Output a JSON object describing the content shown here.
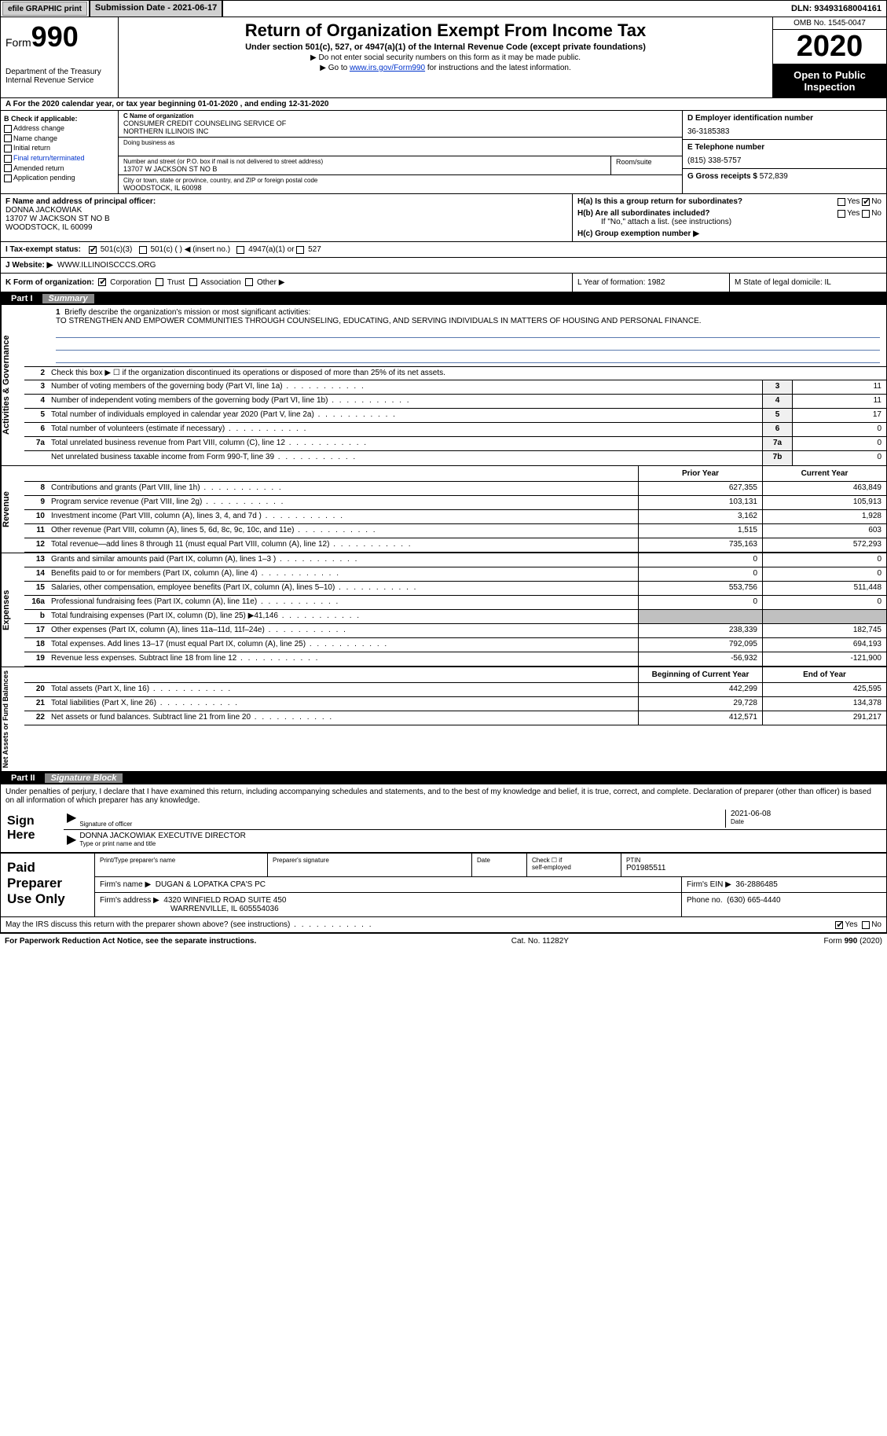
{
  "topbar": {
    "efile_label": "efile GRAPHIC print",
    "submission_label": "Submission Date - 2021-06-17",
    "dln": "DLN: 93493168004161"
  },
  "header": {
    "form_prefix": "Form",
    "form_num": "990",
    "dept": "Department of the Treasury",
    "irs": "Internal Revenue Service",
    "title": "Return of Organization Exempt From Income Tax",
    "subtitle": "Under section 501(c), 527, or 4947(a)(1) of the Internal Revenue Code (except private foundations)",
    "note1": "▶ Do not enter social security numbers on this form as it may be made public.",
    "note2_pre": "▶ Go to ",
    "note2_link": "www.irs.gov/Form990",
    "note2_post": " for instructions and the latest information.",
    "omb": "OMB No. 1545-0047",
    "year": "2020",
    "open": "Open to Public Inspection"
  },
  "line_a": "A For the 2020 calendar year, or tax year beginning 01-01-2020    , and ending 12-31-2020",
  "section_b": {
    "hdr": "B Check if applicable:",
    "addr": "Address change",
    "name": "Name change",
    "init": "Initial return",
    "final": "Final return/terminated",
    "amend": "Amended return",
    "app": "Application pending"
  },
  "section_c": {
    "name_hdr": "C Name of organization",
    "name1": "CONSUMER CREDIT COUNSELING SERVICE OF",
    "name2": "NORTHERN ILLINOIS INC",
    "dba": "Doing business as",
    "street_hdr": "Number and street (or P.O. box if mail is not delivered to street address)",
    "street": "13707 W JACKSON ST NO B",
    "room_hdr": "Room/suite",
    "city_hdr": "City or town, state or province, country, and ZIP or foreign postal code",
    "city": "WOODSTOCK, IL  60098"
  },
  "section_d": {
    "ein_hdr": "D Employer identification number",
    "ein": "36-3185383",
    "tel_hdr": "E Telephone number",
    "tel": "(815) 338-5757",
    "gross_hdr": "G Gross receipts $",
    "gross": "572,839"
  },
  "section_f": {
    "hdr": "F  Name and address of principal officer:",
    "name": "DONNA JACKOWIAK",
    "addr1": "13707 W JACKSON ST NO B",
    "addr2": "WOODSTOCK, IL  60099"
  },
  "section_h": {
    "ha": "H(a)  Is this a group return for subordinates?",
    "hb": "H(b)  Are all subordinates included?",
    "hb_note": "If \"No,\" attach a list. (see instructions)",
    "hc": "H(c)  Group exemption number ▶",
    "yes": "Yes",
    "no": "No"
  },
  "row_i": {
    "label": "I  Tax-exempt status:",
    "c1": "501(c)(3)",
    "c2": "501(c) (  ) ◀ (insert no.)",
    "c3": "4947(a)(1) or",
    "c4": "527"
  },
  "row_j": {
    "label": "J  Website: ▶",
    "val": "WWW.ILLINOISCCCS.ORG"
  },
  "row_k": {
    "label": "K Form of organization:",
    "corp": "Corporation",
    "trust": "Trust",
    "assoc": "Association",
    "other": "Other ▶",
    "l_year": "L Year of formation: 1982",
    "m_state": "M State of legal domicile: IL"
  },
  "part1": {
    "num": "Part I",
    "title": "Summary",
    "q1": "Briefly describe the organization's mission or most significant activities:",
    "mission": "TO STRENGTHEN AND EMPOWER COMMUNITIES THROUGH COUNSELING, EDUCATING, AND SERVING INDIVIDUALS IN MATTERS OF HOUSING AND PERSONAL FINANCE.",
    "q2": "Check this box ▶ ☐  if the organization discontinued its operations or disposed of more than 25% of its net assets.",
    "gov_label": "Activities & Governance",
    "rev_label": "Revenue",
    "exp_label": "Expenses",
    "net_label": "Net Assets or Fund Balances"
  },
  "gov_rows": [
    {
      "n": "3",
      "d": "Number of voting members of the governing body (Part VI, line 1a)",
      "box": "3",
      "v": "11"
    },
    {
      "n": "4",
      "d": "Number of independent voting members of the governing body (Part VI, line 1b)",
      "box": "4",
      "v": "11"
    },
    {
      "n": "5",
      "d": "Total number of individuals employed in calendar year 2020 (Part V, line 2a)",
      "box": "5",
      "v": "17"
    },
    {
      "n": "6",
      "d": "Total number of volunteers (estimate if necessary)",
      "box": "6",
      "v": "0"
    },
    {
      "n": "7a",
      "d": "Total unrelated business revenue from Part VIII, column (C), line 12",
      "box": "7a",
      "v": "0"
    },
    {
      "n": "",
      "d": "Net unrelated business taxable income from Form 990-T, line 39",
      "box": "7b",
      "v": "0"
    }
  ],
  "hdr_prior": "Prior Year",
  "hdr_current": "Current Year",
  "rev_rows": [
    {
      "n": "8",
      "d": "Contributions and grants (Part VIII, line 1h)",
      "p": "627,355",
      "c": "463,849"
    },
    {
      "n": "9",
      "d": "Program service revenue (Part VIII, line 2g)",
      "p": "103,131",
      "c": "105,913"
    },
    {
      "n": "10",
      "d": "Investment income (Part VIII, column (A), lines 3, 4, and 7d )",
      "p": "3,162",
      "c": "1,928"
    },
    {
      "n": "11",
      "d": "Other revenue (Part VIII, column (A), lines 5, 6d, 8c, 9c, 10c, and 11e)",
      "p": "1,515",
      "c": "603"
    },
    {
      "n": "12",
      "d": "Total revenue—add lines 8 through 11 (must equal Part VIII, column (A), line 12)",
      "p": "735,163",
      "c": "572,293"
    }
  ],
  "exp_rows": [
    {
      "n": "13",
      "d": "Grants and similar amounts paid (Part IX, column (A), lines 1–3 )",
      "p": "0",
      "c": "0"
    },
    {
      "n": "14",
      "d": "Benefits paid to or for members (Part IX, column (A), line 4)",
      "p": "0",
      "c": "0"
    },
    {
      "n": "15",
      "d": "Salaries, other compensation, employee benefits (Part IX, column (A), lines 5–10)",
      "p": "553,756",
      "c": "511,448"
    },
    {
      "n": "16a",
      "d": "Professional fundraising fees (Part IX, column (A), line 11e)",
      "p": "0",
      "c": "0"
    },
    {
      "n": "b",
      "d": "Total fundraising expenses (Part IX, column (D), line 25) ▶41,146",
      "p": "",
      "c": "",
      "grey": true
    },
    {
      "n": "17",
      "d": "Other expenses (Part IX, column (A), lines 11a–11d, 11f–24e)",
      "p": "238,339",
      "c": "182,745"
    },
    {
      "n": "18",
      "d": "Total expenses. Add lines 13–17 (must equal Part IX, column (A), line 25)",
      "p": "792,095",
      "c": "694,193"
    },
    {
      "n": "19",
      "d": "Revenue less expenses. Subtract line 18 from line 12",
      "p": "-56,932",
      "c": "-121,900"
    }
  ],
  "hdr_begin": "Beginning of Current Year",
  "hdr_end": "End of Year",
  "net_rows": [
    {
      "n": "20",
      "d": "Total assets (Part X, line 16)",
      "p": "442,299",
      "c": "425,595"
    },
    {
      "n": "21",
      "d": "Total liabilities (Part X, line 26)",
      "p": "29,728",
      "c": "134,378"
    },
    {
      "n": "22",
      "d": "Net assets or fund balances. Subtract line 21 from line 20",
      "p": "412,571",
      "c": "291,217"
    }
  ],
  "part2": {
    "num": "Part II",
    "title": "Signature Block",
    "decl": "Under penalties of perjury, I declare that I have examined this return, including accompanying schedules and statements, and to the best of my knowledge and belief, it is true, correct, and complete. Declaration of preparer (other than officer) is based on all information of which preparer has any knowledge."
  },
  "sign": {
    "label": "Sign Here",
    "sig_officer": "Signature of officer",
    "date": "Date",
    "date_val": "2021-06-08",
    "name": "DONNA JACKOWIAK  EXECUTIVE DIRECTOR",
    "name_lbl": "Type or print name and title"
  },
  "prep": {
    "label": "Paid Preparer Use Only",
    "h1": "Print/Type preparer's name",
    "h2": "Preparer's signature",
    "h3": "Date",
    "h4_a": "Check ☐ if",
    "h4_b": "self-employed",
    "h5": "PTIN",
    "ptin": "P01985511",
    "firm_name_lbl": "Firm's name    ▶",
    "firm_name": "DUGAN & LOPATKA CPA'S PC",
    "firm_ein_lbl": "Firm's EIN ▶",
    "firm_ein": "36-2886485",
    "firm_addr_lbl": "Firm's address ▶",
    "firm_addr1": "4320 WINFIELD ROAD SUITE 450",
    "firm_addr2": "WARRENVILLE, IL  605554036",
    "phone_lbl": "Phone no.",
    "phone": "(630) 665-4440"
  },
  "discuss": "May the IRS discuss this return with the preparer shown above? (see instructions)",
  "footer": {
    "l": "For Paperwork Reduction Act Notice, see the separate instructions.",
    "m": "Cat. No. 11282Y",
    "r": "Form 990 (2020)"
  },
  "colors": {
    "link": "#0033cc",
    "grey_bg": "#c0c0c0",
    "black": "#000000"
  }
}
